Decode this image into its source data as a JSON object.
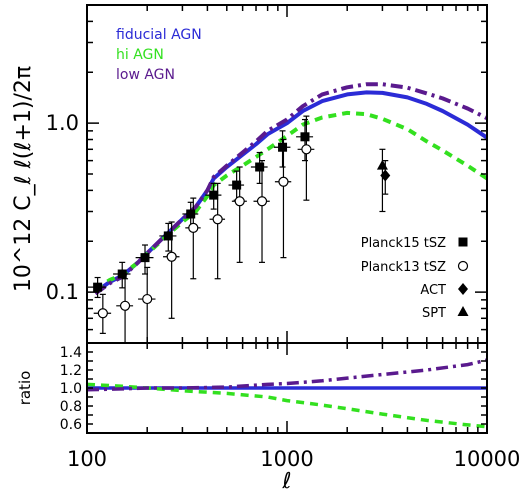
{
  "colors": {
    "fiducial": "#2b2bd6",
    "hi": "#33e01f",
    "low": "#5a1a8e",
    "points": "#000000"
  },
  "chart_data": [
    {
      "type": "line",
      "xscale": "log",
      "yscale": "log",
      "xlim": [
        100,
        10000
      ],
      "ylim": [
        0.05,
        5
      ],
      "ylabel": "10^12 C_ℓ ℓ(ℓ+1)/2π",
      "xlabel": "ℓ",
      "yticks": [
        {
          "v": 0.1,
          "label": "0.1"
        },
        {
          "v": 1.0,
          "label": "1.0"
        }
      ],
      "xticks": [
        {
          "v": 100,
          "label": "100"
        },
        {
          "v": 1000,
          "label": "1000"
        },
        {
          "v": 10000,
          "label": "10000"
        }
      ],
      "legend_placement": "top-left",
      "series": [
        {
          "name": "fiducial AGN",
          "color_key": "fiducial",
          "style": "solid",
          "x": [
            110,
            130,
            150,
            180,
            200,
            250,
            300,
            350,
            400,
            430,
            500,
            600,
            700,
            800,
            1000,
            1200,
            1500,
            2000,
            2500,
            3000,
            4000,
            5000,
            6000,
            8000,
            10000
          ],
          "y": [
            0.1,
            0.115,
            0.125,
            0.15,
            0.17,
            0.22,
            0.27,
            0.32,
            0.4,
            0.47,
            0.55,
            0.65,
            0.75,
            0.86,
            1.0,
            1.18,
            1.35,
            1.48,
            1.52,
            1.51,
            1.42,
            1.3,
            1.18,
            0.98,
            0.82
          ]
        },
        {
          "name": "hi AGN",
          "color_key": "hi",
          "style": "dashed",
          "x": [
            110,
            130,
            150,
            180,
            200,
            250,
            300,
            350,
            400,
            430,
            500,
            600,
            700,
            800,
            1000,
            1200,
            1500,
            2000,
            2500,
            3000,
            4000,
            5000,
            6000,
            8000,
            10000
          ],
          "y": [
            0.105,
            0.118,
            0.127,
            0.15,
            0.168,
            0.215,
            0.26,
            0.3,
            0.37,
            0.43,
            0.49,
            0.56,
            0.63,
            0.7,
            0.84,
            0.98,
            1.08,
            1.15,
            1.13,
            1.06,
            0.92,
            0.78,
            0.69,
            0.56,
            0.47
          ]
        },
        {
          "name": "low AGN",
          "color_key": "low",
          "style": "dashdot",
          "x": [
            110,
            130,
            150,
            180,
            200,
            250,
            300,
            350,
            400,
            430,
            500,
            600,
            700,
            800,
            1000,
            1200,
            1500,
            2000,
            2500,
            3000,
            4000,
            5000,
            6000,
            8000,
            10000
          ],
          "y": [
            0.098,
            0.113,
            0.123,
            0.15,
            0.17,
            0.22,
            0.27,
            0.32,
            0.4,
            0.48,
            0.56,
            0.67,
            0.78,
            0.9,
            1.05,
            1.26,
            1.48,
            1.63,
            1.7,
            1.7,
            1.62,
            1.5,
            1.4,
            1.22,
            1.07
          ]
        }
      ],
      "observations": [
        {
          "name": "Planck15 tSZ",
          "marker": "filled-square",
          "points": [
            {
              "x": 113,
              "y": 0.107,
              "ylo": 0.093,
              "yhi": 0.122,
              "xlo": 100,
              "xhi": 125
            },
            {
              "x": 150,
              "y": 0.128,
              "ylo": 0.106,
              "yhi": 0.15,
              "xlo": 135,
              "xhi": 165
            },
            {
              "x": 195,
              "y": 0.16,
              "ylo": 0.128,
              "yhi": 0.19,
              "xlo": 175,
              "xhi": 215
            },
            {
              "x": 255,
              "y": 0.215,
              "ylo": 0.175,
              "yhi": 0.255,
              "xlo": 230,
              "xhi": 280
            },
            {
              "x": 330,
              "y": 0.29,
              "ylo": 0.24,
              "yhi": 0.34,
              "xlo": 300,
              "xhi": 360
            },
            {
              "x": 430,
              "y": 0.375,
              "ylo": 0.31,
              "yhi": 0.44,
              "xlo": 390,
              "xhi": 470
            },
            {
              "x": 560,
              "y": 0.43,
              "ylo": 0.35,
              "yhi": 0.52,
              "xlo": 510,
              "xhi": 610
            },
            {
              "x": 730,
              "y": 0.55,
              "ylo": 0.44,
              "yhi": 0.67,
              "xlo": 660,
              "xhi": 800
            },
            {
              "x": 950,
              "y": 0.72,
              "ylo": 0.55,
              "yhi": 0.9,
              "xlo": 860,
              "xhi": 1040
            },
            {
              "x": 1230,
              "y": 0.83,
              "ylo": 0.6,
              "yhi": 1.05,
              "xlo": 1110,
              "xhi": 1350
            }
          ]
        },
        {
          "name": "Planck13 tSZ",
          "marker": "open-circle",
          "points": [
            {
              "x": 120,
              "y": 0.075,
              "ylo": 0.057,
              "yhi": 0.097,
              "xlo": 108,
              "xhi": 132
            },
            {
              "x": 155,
              "y": 0.083,
              "ylo": 0.05,
              "yhi": 0.12,
              "xlo": 140,
              "xhi": 170
            },
            {
              "x": 200,
              "y": 0.091,
              "ylo": 0.05,
              "yhi": 0.14,
              "xlo": 180,
              "xhi": 220
            },
            {
              "x": 265,
              "y": 0.162,
              "ylo": 0.07,
              "yhi": 0.26,
              "xlo": 240,
              "xhi": 290
            },
            {
              "x": 340,
              "y": 0.24,
              "ylo": 0.12,
              "yhi": 0.36,
              "xlo": 310,
              "xhi": 370
            },
            {
              "x": 450,
              "y": 0.27,
              "ylo": 0.12,
              "yhi": 0.44,
              "xlo": 410,
              "xhi": 490
            },
            {
              "x": 580,
              "y": 0.345,
              "ylo": 0.15,
              "yhi": 0.55,
              "xlo": 530,
              "xhi": 630
            },
            {
              "x": 750,
              "y": 0.345,
              "ylo": 0.15,
              "yhi": 0.6,
              "xlo": 680,
              "xhi": 820
            },
            {
              "x": 960,
              "y": 0.45,
              "ylo": 0.16,
              "yhi": 0.8,
              "xlo": 870,
              "xhi": 1050
            },
            {
              "x": 1250,
              "y": 0.7,
              "ylo": 0.35,
              "yhi": 1.1,
              "xlo": 1130,
              "xhi": 1370
            }
          ]
        },
        {
          "name": "ACT",
          "marker": "filled-diamond",
          "points": [
            {
              "x": 3100,
              "y": 0.49,
              "ylo": 0.38,
              "yhi": 0.6
            }
          ]
        },
        {
          "name": "SPT",
          "marker": "filled-triangle",
          "points": [
            {
              "x": 3000,
              "y": 0.56,
              "ylo": 0.3,
              "yhi": 0.7
            }
          ]
        }
      ]
    },
    {
      "type": "line",
      "xscale": "log",
      "xlim": [
        100,
        10000
      ],
      "ylim": [
        0.5,
        1.5
      ],
      "ylabel": "ratio",
      "xlabel": "ℓ",
      "yticks": [
        {
          "v": 0.6,
          "label": "0.6"
        },
        {
          "v": 0.8,
          "label": "0.8"
        },
        {
          "v": 1.0,
          "label": "1.0"
        },
        {
          "v": 1.2,
          "label": "1.2"
        },
        {
          "v": 1.4,
          "label": "1.4"
        }
      ],
      "series": [
        {
          "color_key": "fiducial",
          "style": "solid",
          "x": [
            100,
            10000
          ],
          "y": [
            1.0,
            1.0
          ]
        },
        {
          "color_key": "hi",
          "style": "dashed",
          "x": [
            100,
            150,
            200,
            300,
            500,
            800,
            1000,
            1500,
            2000,
            3000,
            5000,
            8000,
            10000
          ],
          "y": [
            1.04,
            1.02,
            1.0,
            0.97,
            0.94,
            0.9,
            0.86,
            0.81,
            0.77,
            0.71,
            0.64,
            0.59,
            0.57
          ]
        },
        {
          "color_key": "low",
          "style": "dashdot",
          "x": [
            100,
            150,
            200,
            300,
            500,
            800,
            1000,
            1500,
            2000,
            3000,
            5000,
            8000,
            10000
          ],
          "y": [
            0.98,
            0.99,
            1.0,
            1.0,
            1.01,
            1.04,
            1.05,
            1.08,
            1.11,
            1.15,
            1.2,
            1.26,
            1.31
          ]
        }
      ]
    }
  ]
}
